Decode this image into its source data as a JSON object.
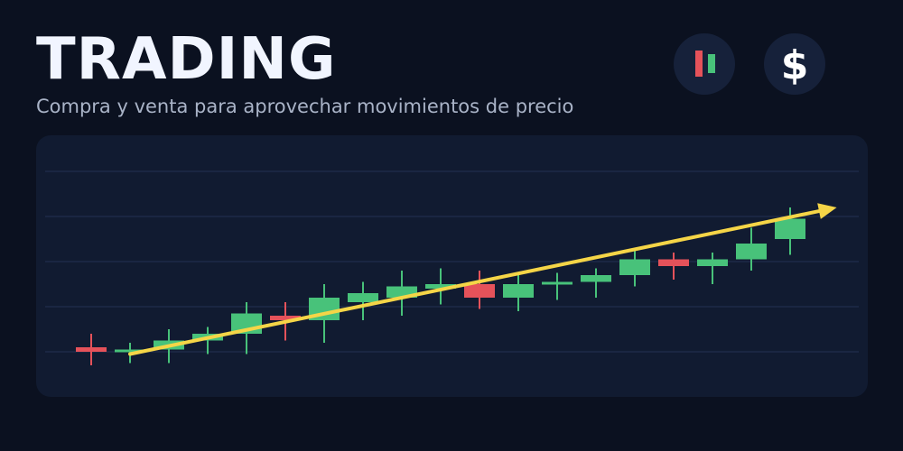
{
  "header": {
    "title": "TRADING",
    "subtitle": "Compra y venta para aprovechar movimientos de precio",
    "icons": [
      "candlestick-icon",
      "dollar-icon"
    ],
    "dollar_symbol": "$"
  },
  "colors": {
    "background": "#0b1120",
    "panel": "#111b31",
    "up": "#48c27a",
    "down": "#e5525a",
    "trend": "#f5d547",
    "grid": "#223052"
  },
  "chart_data": {
    "type": "candlestick",
    "title": "",
    "xlabel": "",
    "ylabel": "",
    "ylim": [
      0,
      5
    ],
    "grid": true,
    "legend": "none",
    "candles": [
      {
        "open": 1.1,
        "close": 1.0,
        "high": 1.4,
        "low": 0.7
      },
      {
        "open": 1.0,
        "close": 1.05,
        "high": 1.2,
        "low": 0.75
      },
      {
        "open": 1.05,
        "close": 1.25,
        "high": 1.5,
        "low": 0.75
      },
      {
        "open": 1.25,
        "close": 1.4,
        "high": 1.55,
        "low": 0.95
      },
      {
        "open": 1.4,
        "close": 1.85,
        "high": 2.1,
        "low": 0.95
      },
      {
        "open": 1.8,
        "close": 1.7,
        "high": 2.1,
        "low": 1.25
      },
      {
        "open": 1.7,
        "close": 2.2,
        "high": 2.5,
        "low": 1.2
      },
      {
        "open": 2.1,
        "close": 2.3,
        "high": 2.55,
        "low": 1.7
      },
      {
        "open": 2.2,
        "close": 2.45,
        "high": 2.8,
        "low": 1.8
      },
      {
        "open": 2.4,
        "close": 2.5,
        "high": 2.85,
        "low": 2.05
      },
      {
        "open": 2.5,
        "close": 2.2,
        "high": 2.8,
        "low": 1.95
      },
      {
        "open": 2.2,
        "close": 2.5,
        "high": 2.75,
        "low": 1.9
      },
      {
        "open": 2.5,
        "close": 2.55,
        "high": 2.75,
        "low": 2.15
      },
      {
        "open": 2.55,
        "close": 2.7,
        "high": 2.85,
        "low": 2.2
      },
      {
        "open": 2.7,
        "close": 3.05,
        "high": 3.25,
        "low": 2.45
      },
      {
        "open": 3.05,
        "close": 2.9,
        "high": 3.2,
        "low": 2.6
      },
      {
        "open": 2.9,
        "close": 3.05,
        "high": 3.2,
        "low": 2.5
      },
      {
        "open": 3.05,
        "close": 3.4,
        "high": 3.75,
        "low": 2.8
      },
      {
        "open": 3.5,
        "close": 3.95,
        "high": 4.2,
        "low": 3.15
      }
    ],
    "trend": {
      "start": [
        1,
        0.95
      ],
      "end": [
        19.2,
        4.2
      ]
    }
  }
}
